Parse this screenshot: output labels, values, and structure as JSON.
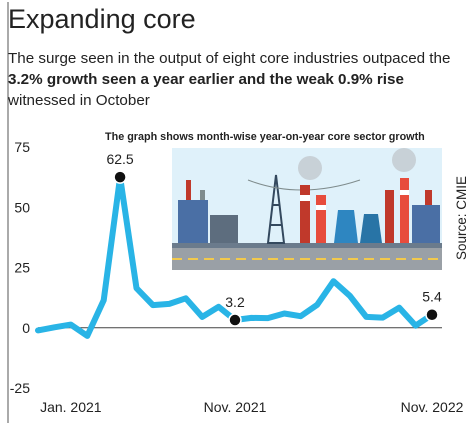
{
  "chart_data": {
    "type": "line",
    "title": "Expanding core",
    "subtitle": [
      "The surge seen in the output of eight core industries outpaced the ",
      "3.2% growth seen a year earlier and the weak 0.9% rise",
      " witnessed in October"
    ],
    "annotation": "The graph shows month-wise year-on-year core sector growth",
    "source": "Source: CMIE",
    "categories": [
      null,
      null,
      "Jan. 2021",
      null,
      null,
      null,
      null,
      null,
      null,
      null,
      null,
      null,
      "Nov. 2021",
      null,
      null,
      null,
      null,
      null,
      null,
      null,
      null,
      null,
      null,
      null,
      "Nov. 2022"
    ],
    "values": [
      -1.1,
      0.2,
      1.3,
      -3.4,
      11.4,
      62.5,
      16.4,
      9.4,
      9.9,
      12.2,
      4.5,
      8.7,
      3.2,
      4.1,
      4.0,
      5.9,
      4.8,
      9.5,
      19.3,
      13.2,
      4.5,
      4.2,
      8.3,
      0.9,
      5.4
    ],
    "labeled_points": [
      5,
      12,
      24
    ],
    "color": "#29b4e6",
    "ylim": [
      -25,
      75
    ],
    "yticks": [
      -25,
      0,
      25,
      50,
      75
    ]
  }
}
